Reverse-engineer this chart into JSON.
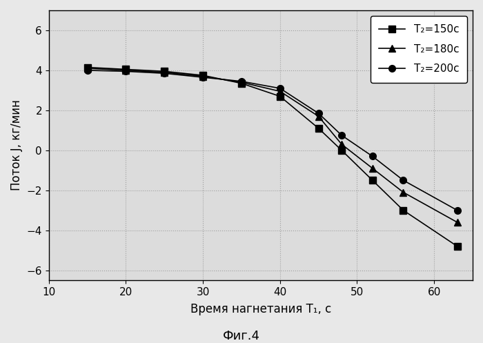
{
  "series": [
    {
      "label": "T₂=150c",
      "marker": "s",
      "color": "#000000",
      "x": [
        15,
        20,
        25,
        30,
        35,
        40,
        45,
        48,
        52,
        56,
        63
      ],
      "y": [
        4.15,
        4.05,
        3.95,
        3.75,
        3.35,
        2.7,
        1.1,
        0.0,
        -1.5,
        -3.0,
        -4.8
      ]
    },
    {
      "label": "T₂=180c",
      "marker": "^",
      "color": "#000000",
      "x": [
        15,
        20,
        25,
        30,
        35,
        40,
        45,
        48,
        52,
        56,
        63
      ],
      "y": [
        4.1,
        4.0,
        3.9,
        3.7,
        3.4,
        2.95,
        1.7,
        0.3,
        -0.9,
        -2.1,
        -3.6
      ]
    },
    {
      "label": "T₂=200c",
      "marker": "o",
      "color": "#000000",
      "x": [
        15,
        20,
        25,
        30,
        35,
        40,
        45,
        48,
        52,
        56,
        63
      ],
      "y": [
        4.0,
        3.95,
        3.85,
        3.65,
        3.45,
        3.1,
        1.85,
        0.75,
        -0.3,
        -1.5,
        -3.0
      ]
    }
  ],
  "xlabel": "Время нагнетания T₁, с",
  "ylabel": "Поток J, кг/мин",
  "figure_title": "Фиг.4",
  "xlim": [
    10,
    65
  ],
  "ylim": [
    -6.5,
    7.0
  ],
  "xticks": [
    10,
    20,
    30,
    40,
    50,
    60
  ],
  "yticks": [
    -6,
    -4,
    -2,
    0,
    2,
    4,
    6
  ],
  "grid": true,
  "background_color": "#e8e8e8",
  "plot_bg_color": "#dcdcdc",
  "figsize": [
    7.0,
    4.97
  ],
  "dpi": 100
}
